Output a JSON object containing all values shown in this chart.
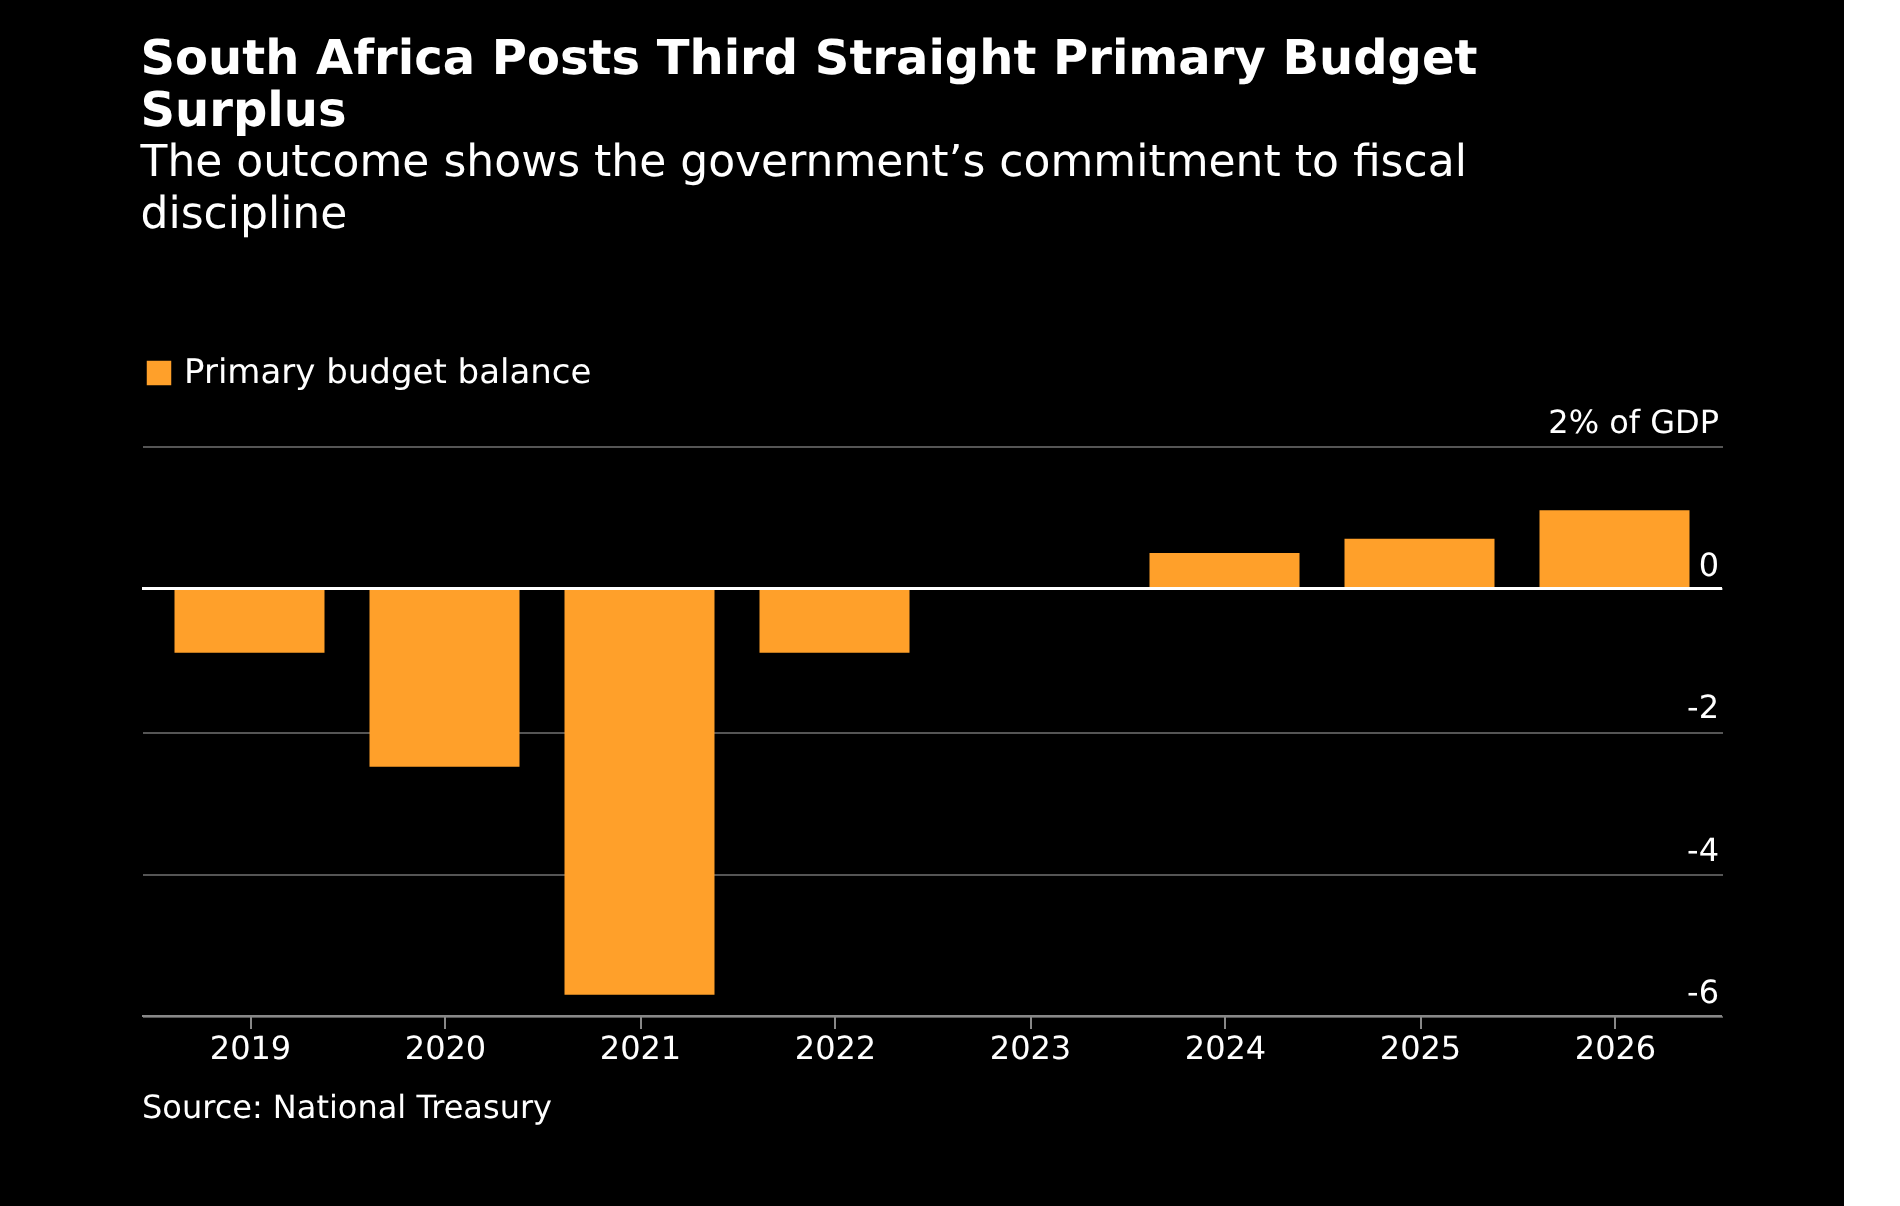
{
  "chart_data": {
    "type": "bar",
    "title": "South Africa Posts Third Straight Primary Budget Surplus",
    "subtitle": "The outcome shows the government’s commitment to fiscal discipline",
    "categories": [
      "2019",
      "2020",
      "2021",
      "2022",
      "2023",
      "2024",
      "2025",
      "2026"
    ],
    "series": [
      {
        "name": "Primary budget balance",
        "color": "#ffa02a",
        "values": [
          -0.9,
          -2.5,
          -5.7,
          -0.9,
          0,
          0.5,
          0.7,
          1.1
        ]
      }
    ],
    "ylim": [
      -6,
      2
    ],
    "yticks": [
      {
        "value": 2,
        "label": "2% of GDP"
      },
      0,
      -2,
      -4,
      -6
    ],
    "grid": "y",
    "legend": "top left",
    "annotations": [
      "Source: National Treasury"
    ]
  }
}
